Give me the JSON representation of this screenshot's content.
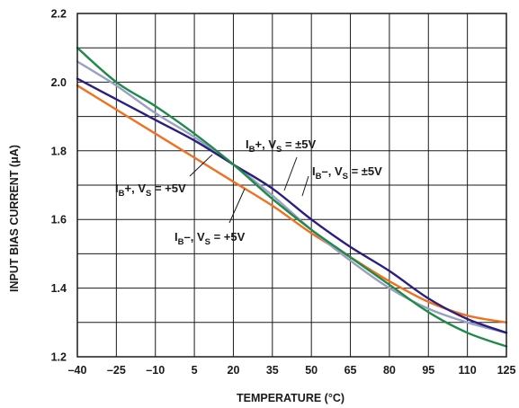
{
  "chart_data": {
    "type": "line",
    "title": "",
    "xlabel": "TEMPERATURE (°C)",
    "ylabel": "INPUT BIAS CURRENT (μA)",
    "xlim": [
      -40,
      125
    ],
    "ylim": [
      1.2,
      2.2
    ],
    "grid": true,
    "x_ticks": [
      -40,
      -25,
      -10,
      5,
      20,
      35,
      50,
      65,
      80,
      95,
      110,
      125
    ],
    "y_ticks": [
      1.2,
      1.4,
      1.6,
      1.8,
      2.0,
      2.2
    ],
    "x_tick_labels": [
      "–40",
      "–25",
      "–10",
      "5",
      "20",
      "35",
      "50",
      "65",
      "80",
      "95",
      "110",
      "125"
    ],
    "y_tick_labels": [
      "1.2",
      "1.4",
      "1.6",
      "1.8",
      "2.0",
      "2.2"
    ],
    "series": [
      {
        "name": "IB+, VS = +5V",
        "color": "#f07020",
        "points": [
          [
            -40,
            1.99
          ],
          [
            -25,
            1.92
          ],
          [
            -10,
            1.85
          ],
          [
            5,
            1.78
          ],
          [
            20,
            1.71
          ],
          [
            35,
            1.64
          ],
          [
            50,
            1.56
          ],
          [
            65,
            1.49
          ],
          [
            80,
            1.42
          ],
          [
            95,
            1.36
          ],
          [
            110,
            1.32
          ],
          [
            125,
            1.3
          ]
        ]
      },
      {
        "name": "IB–, VS = +5V",
        "color": "#9aa0c2",
        "points": [
          [
            -40,
            2.06
          ],
          [
            -25,
            1.99
          ],
          [
            -10,
            1.91
          ],
          [
            5,
            1.84
          ],
          [
            20,
            1.76
          ],
          [
            35,
            1.67
          ],
          [
            50,
            1.57
          ],
          [
            65,
            1.48
          ],
          [
            80,
            1.4
          ],
          [
            95,
            1.34
          ],
          [
            110,
            1.3
          ],
          [
            125,
            1.27
          ]
        ]
      },
      {
        "name": "IB+, VS = ±5V",
        "color": "#2a1f80",
        "points": [
          [
            -40,
            2.01
          ],
          [
            -25,
            1.95
          ],
          [
            -10,
            1.89
          ],
          [
            5,
            1.83
          ],
          [
            20,
            1.76
          ],
          [
            35,
            1.69
          ],
          [
            50,
            1.6
          ],
          [
            65,
            1.52
          ],
          [
            80,
            1.45
          ],
          [
            95,
            1.37
          ],
          [
            110,
            1.31
          ],
          [
            125,
            1.27
          ]
        ]
      },
      {
        "name": "IB–, VS = ±5V",
        "color": "#1f8a4a",
        "points": [
          [
            -40,
            2.1
          ],
          [
            -25,
            2.0
          ],
          [
            -10,
            1.93
          ],
          [
            5,
            1.85
          ],
          [
            20,
            1.76
          ],
          [
            35,
            1.66
          ],
          [
            50,
            1.57
          ],
          [
            65,
            1.49
          ],
          [
            80,
            1.41
          ],
          [
            95,
            1.33
          ],
          [
            110,
            1.27
          ],
          [
            125,
            1.23
          ]
        ]
      }
    ]
  },
  "annotations": [
    {
      "main": "I",
      "sub1": "B",
      "mid": "+, V",
      "sub2": "S",
      "tail": " = +5V"
    },
    {
      "main": "I",
      "sub1": "B",
      "mid": "–, V",
      "sub2": "S",
      "tail": " = +5V"
    },
    {
      "main": "I",
      "sub1": "B",
      "mid": "+, V",
      "sub2": "S",
      "tail": " = ±5V"
    },
    {
      "main": "I",
      "sub1": "B",
      "mid": "–, V",
      "sub2": "S",
      "tail": " = ±5V"
    }
  ]
}
